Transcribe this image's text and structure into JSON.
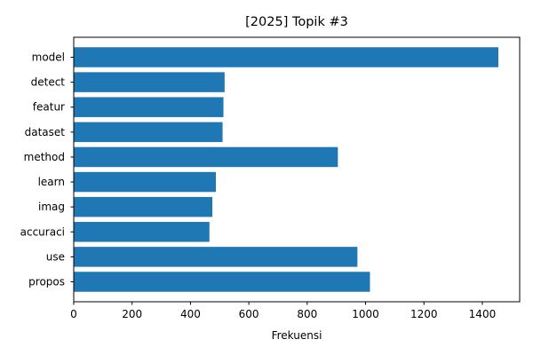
{
  "chart_data": {
    "type": "bar",
    "orientation": "horizontal",
    "title": "[2025] Topik #3",
    "xlabel": "Frekuensi",
    "ylabel": "",
    "categories": [
      "model",
      "detect",
      "featur",
      "dataset",
      "method",
      "learn",
      "imag",
      "accuraci",
      "use",
      "propos"
    ],
    "values": [
      1455,
      517,
      513,
      510,
      905,
      487,
      475,
      465,
      972,
      1015
    ],
    "xlim": [
      0,
      1528
    ],
    "xticks": [
      0,
      200,
      400,
      600,
      800,
      1000,
      1200,
      1400
    ],
    "bar_color": "#1f77b4",
    "grid": false
  }
}
